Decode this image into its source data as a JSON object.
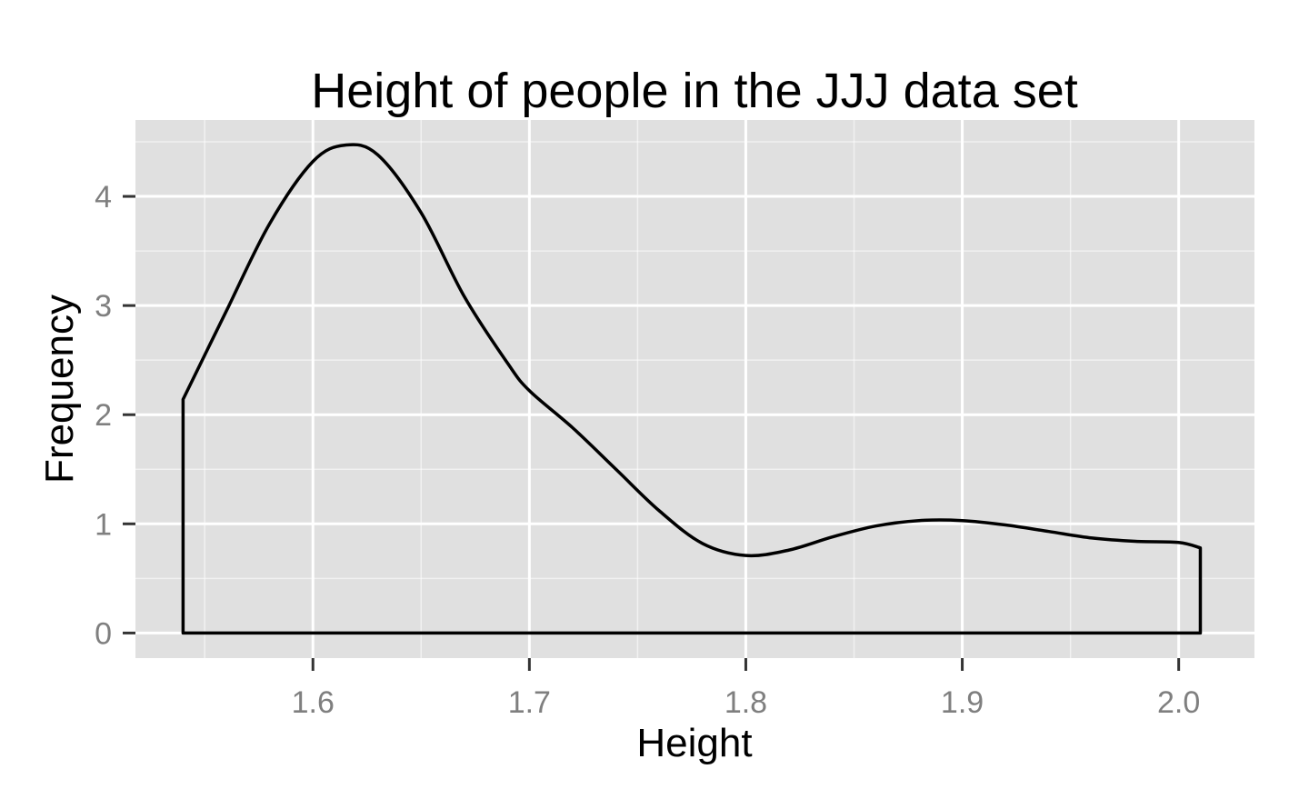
{
  "chart_data": {
    "type": "area",
    "title": "Height of people in the JJJ data set",
    "xlabel": "Height",
    "ylabel": "Frequency",
    "xlim": [
      1.518,
      2.035
    ],
    "ylim": [
      -0.23,
      4.7
    ],
    "x_ticks": [
      1.6,
      1.7,
      1.8,
      1.9,
      2.0
    ],
    "x_tick_labels": [
      "1.6",
      "1.7",
      "1.8",
      "1.9",
      "2.0"
    ],
    "y_ticks": [
      0,
      1,
      2,
      3,
      4
    ],
    "y_tick_labels": [
      "0",
      "1",
      "2",
      "3",
      "4"
    ],
    "grid": true,
    "series": [
      {
        "x": [
          1.54,
          1.56,
          1.58,
          1.6,
          1.615,
          1.63,
          1.65,
          1.67,
          1.69,
          1.7,
          1.72,
          1.74,
          1.76,
          1.78,
          1.8,
          1.82,
          1.84,
          1.86,
          1.88,
          1.9,
          1.92,
          1.94,
          1.96,
          1.98,
          2.0,
          2.01
        ],
        "values": [
          2.14,
          2.95,
          3.75,
          4.32,
          4.47,
          4.38,
          3.85,
          3.08,
          2.47,
          2.22,
          1.88,
          1.5,
          1.12,
          0.82,
          0.71,
          0.76,
          0.88,
          0.98,
          1.03,
          1.03,
          0.99,
          0.93,
          0.87,
          0.84,
          0.83,
          0.78
        ],
        "color": "#000000"
      }
    ],
    "panel_background": "#e0e0e0",
    "grid_color": "#ffffff"
  }
}
